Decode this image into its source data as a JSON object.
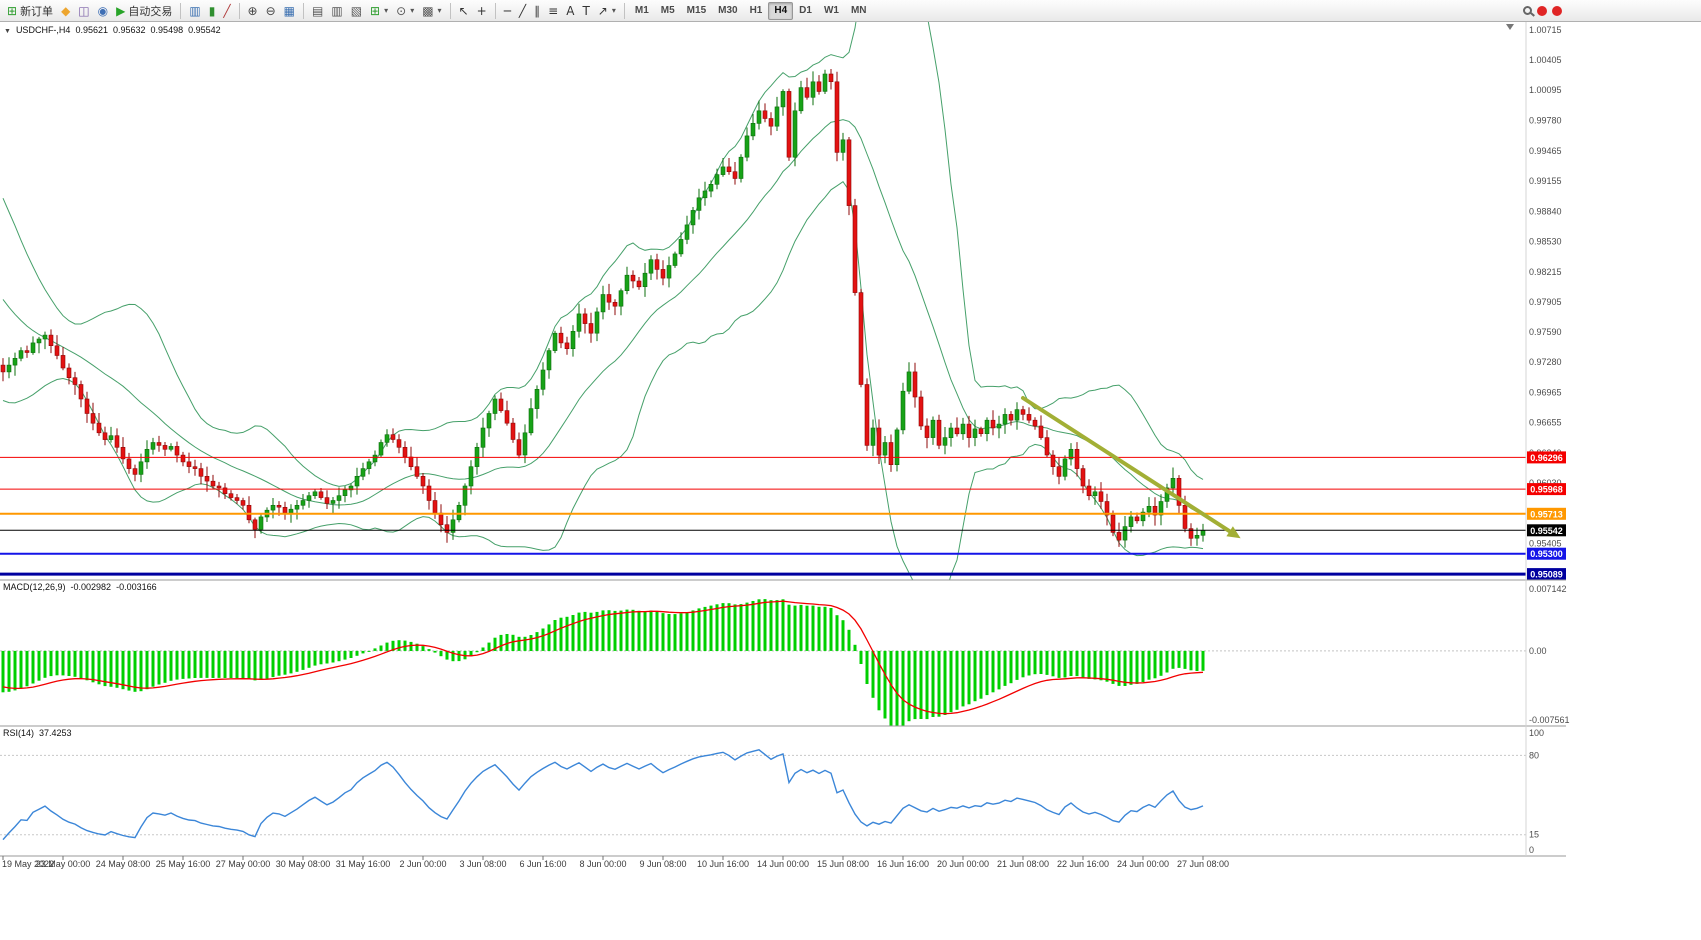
{
  "toolbar": {
    "dropdown_glyph": "▾",
    "groups": [
      {
        "items": [
          {
            "name": "new-order-button",
            "glyph": "⊞",
            "color": "#2f9e2f",
            "label": "新订单"
          },
          {
            "name": "mql5-icon",
            "glyph": "◆",
            "color": "#eda52e"
          },
          {
            "name": "market-icon",
            "glyph": "◫",
            "color": "#7b5ea7"
          },
          {
            "name": "signals-icon",
            "glyph": "◉",
            "color": "#3f6fb5"
          },
          {
            "name": "autotrading-button",
            "glyph": "▶",
            "color": "#27a327",
            "label": "自动交易"
          }
        ]
      },
      {
        "items": [
          {
            "name": "bar-chart-icon",
            "glyph": "▥",
            "color": "#3a6fb0"
          },
          {
            "name": "candlestick-chart-icon",
            "glyph": "▮",
            "color": "#2f8f2f"
          },
          {
            "name": "line-chart-icon",
            "glyph": "╱",
            "color": "#b03a3a"
          }
        ]
      },
      {
        "items": [
          {
            "name": "zoom-in-icon",
            "glyph": "⊕",
            "color": "#444444"
          },
          {
            "name": "zoom-out-icon",
            "glyph": "⊖",
            "color": "#444444"
          },
          {
            "name": "tile-windows-icon",
            "glyph": "▦",
            "color": "#3a6fb0"
          }
        ]
      },
      {
        "items": [
          {
            "name": "cascade-windows-icon",
            "glyph": "▤",
            "color": "#555555"
          },
          {
            "name": "tile-horizontal-icon",
            "glyph": "▥",
            "color": "#555555"
          },
          {
            "name": "tile-vertical-icon",
            "glyph": "▧",
            "color": "#555555"
          },
          {
            "name": "add-indicator-button",
            "glyph": "⊞",
            "color": "#2f9e2f",
            "dropdown": true
          },
          {
            "name": "period-button",
            "glyph": "⊙",
            "color": "#555555",
            "dropdown": true
          },
          {
            "name": "template-button",
            "glyph": "▩",
            "color": "#555555",
            "dropdown": true
          }
        ]
      },
      {
        "items": [
          {
            "name": "cursor-icon",
            "glyph": "↖",
            "color": "#333333"
          },
          {
            "name": "crosshair-icon",
            "glyph": "+",
            "color": "#333333"
          }
        ]
      },
      {
        "items": [
          {
            "name": "horizontal-line-icon",
            "glyph": "─",
            "color": "#333333"
          },
          {
            "name": "trendline-icon",
            "glyph": "╱",
            "color": "#333333"
          },
          {
            "name": "channel-icon",
            "glyph": "∥",
            "color": "#333333"
          },
          {
            "name": "fibonacci-icon",
            "glyph": "≡",
            "color": "#333333"
          },
          {
            "name": "text-tool-icon",
            "glyph": "A",
            "color": "#333333"
          },
          {
            "name": "label-tool-icon",
            "glyph": "T",
            "color": "#333333"
          },
          {
            "name": "shapes-button",
            "glyph": "↗",
            "color": "#333333",
            "dropdown": true
          }
        ]
      }
    ],
    "timeframes": [
      "M1",
      "M5",
      "M15",
      "M30",
      "H1",
      "H4",
      "D1",
      "W1",
      "MN"
    ],
    "active_timeframe": "H4",
    "badge_color": "#e02525",
    "badge_count": 2
  },
  "main_chart": {
    "collapse_glyph": "▼",
    "symbol_period": "USDCHF-,H4",
    "ohlc": {
      "open": "0.95621",
      "high": "0.95632",
      "low": "0.95498",
      "close": "0.95542"
    },
    "y_axis": {
      "top_price": 1.00798,
      "bottom_price": 0.95028,
      "ticks": [
        "1.00715",
        "1.00405",
        "1.00095",
        "0.99780",
        "0.99465",
        "0.99155",
        "0.98840",
        "0.98530",
        "0.98215",
        "0.97905",
        "0.97590",
        "0.97280",
        "0.96965",
        "0.96655",
        "0.96340",
        "0.96030",
        "0.95715",
        "0.95405",
        "0.95089"
      ]
    },
    "price_lines": [
      {
        "price": 0.96296,
        "label": "0.96296",
        "color": "#f40000",
        "thickness": 1
      },
      {
        "price": 0.95968,
        "label": "0.95968",
        "color": "#f40000",
        "thickness": 1
      },
      {
        "price": 0.95713,
        "label": "0.95713",
        "color": "#ff9800",
        "thickness": 2
      },
      {
        "price": 0.95542,
        "label": "0.95542",
        "color": "#000000",
        "thickness": 1
      },
      {
        "price": 0.953,
        "label": "0.95300",
        "color": "#1414e8",
        "thickness": 2
      },
      {
        "price": 0.95089,
        "label": "0.95089",
        "color": "#0000a0",
        "thickness": 3
      }
    ],
    "trend_arrow": {
      "from_index": 170,
      "from_price": 0.9691,
      "to_index": 205,
      "to_price": 0.9551,
      "color": "#a2af35"
    },
    "bollinger": {
      "period": 20,
      "deviation": 2,
      "color": "#46a06a"
    },
    "candle_colors": {
      "up": "#17a217",
      "up_border": "#0c6f0c",
      "down": "#e31212",
      "down_border": "#8f0808"
    },
    "candles": {
      "pre_closes": [
        0.9902,
        0.989,
        0.9876,
        0.9868,
        0.9855,
        0.9841,
        0.9832,
        0.982,
        0.9808,
        0.98,
        0.9791,
        0.978,
        0.9772,
        0.9764,
        0.9757,
        0.975,
        0.9744,
        0.9738,
        0.9731,
        0.9725
      ],
      "closes": [
        0.9718,
        0.9725,
        0.9732,
        0.974,
        0.9738,
        0.9748,
        0.9752,
        0.9756,
        0.9745,
        0.9735,
        0.9722,
        0.9712,
        0.9705,
        0.969,
        0.9675,
        0.9665,
        0.9655,
        0.9648,
        0.9652,
        0.964,
        0.9628,
        0.9618,
        0.9612,
        0.9625,
        0.9638,
        0.9645,
        0.9642,
        0.9638,
        0.9641,
        0.9632,
        0.9625,
        0.962,
        0.9618,
        0.961,
        0.9605,
        0.96,
        0.9598,
        0.9592,
        0.9588,
        0.9585,
        0.958,
        0.9565,
        0.9555,
        0.9568,
        0.9575,
        0.958,
        0.9578,
        0.9572,
        0.9576,
        0.958,
        0.9585,
        0.959,
        0.9594,
        0.9588,
        0.9582,
        0.9585,
        0.959,
        0.9596,
        0.96,
        0.961,
        0.9618,
        0.9625,
        0.9632,
        0.9645,
        0.9653,
        0.9648,
        0.964,
        0.963,
        0.962,
        0.961,
        0.96,
        0.9585,
        0.9572,
        0.956,
        0.9552,
        0.9565,
        0.958,
        0.96,
        0.962,
        0.964,
        0.966,
        0.9675,
        0.969,
        0.9678,
        0.9665,
        0.9648,
        0.9632,
        0.9655,
        0.968,
        0.97,
        0.972,
        0.974,
        0.9758,
        0.9748,
        0.9742,
        0.976,
        0.9778,
        0.9768,
        0.9758,
        0.978,
        0.9798,
        0.979,
        0.9786,
        0.9802,
        0.9818,
        0.9812,
        0.9806,
        0.982,
        0.9834,
        0.9824,
        0.9815,
        0.9828,
        0.984,
        0.9855,
        0.987,
        0.9885,
        0.9898,
        0.9905,
        0.9912,
        0.9922,
        0.993,
        0.9925,
        0.9918,
        0.994,
        0.9962,
        0.9975,
        0.9988,
        0.998,
        0.9972,
        0.9992,
        1.0008,
        0.994,
        0.9988,
        1.0012,
        1.0002,
        1.0018,
        1.0008,
        1.0026,
        1.0018,
        0.9945,
        0.9958,
        0.989,
        0.98,
        0.9705,
        0.9642,
        0.966,
        0.9632,
        0.9645,
        0.9622,
        0.9658,
        0.9698,
        0.9718,
        0.9692,
        0.9662,
        0.965,
        0.9668,
        0.9642,
        0.965,
        0.966,
        0.9654,
        0.9664,
        0.965,
        0.9659,
        0.9654,
        0.9668,
        0.966,
        0.9664,
        0.9674,
        0.9668,
        0.9679,
        0.9674,
        0.9668,
        0.9662,
        0.965,
        0.9632,
        0.962,
        0.961,
        0.9628,
        0.9638,
        0.9618,
        0.96,
        0.959,
        0.9594,
        0.9584,
        0.957,
        0.9552,
        0.9544,
        0.9558,
        0.9568,
        0.9564,
        0.9573,
        0.9579,
        0.957,
        0.9584,
        0.9598,
        0.9608,
        0.958,
        0.9556,
        0.9546,
        0.9549,
        0.95542
      ]
    }
  },
  "macd_panel": {
    "title": "MACD(12,26,9)",
    "value_main": "-0.002982",
    "value_signal": "-0.003166",
    "scale": {
      "max": "0.007142",
      "zero": "0.00",
      "min": "-0.007561"
    },
    "histogram_color": "#00cf00",
    "signal_color": "#f20000"
  },
  "rsi_panel": {
    "title": "RSI(14)",
    "value": "37.4253",
    "scale": [
      "100",
      "80",
      "15",
      "0"
    ],
    "levels": [
      80,
      15
    ],
    "line_color": "#3b86d8"
  },
  "x_axis": {
    "labels": [
      "19 May 2022",
      "23 May 00:00",
      "24 May 08:00",
      "25 May 16:00",
      "27 May 00:00",
      "30 May 08:00",
      "31 May 16:00",
      "2 Jun 00:00",
      "3 Jun 08:00",
      "6 Jun 16:00",
      "8 Jun 00:00",
      "9 Jun 08:00",
      "10 Jun 16:00",
      "14 Jun 00:00",
      "15 Jun 08:00",
      "16 Jun 16:00",
      "20 Jun 00:00",
      "21 Jun 08:00",
      "22 Jun 16:00",
      "24 Jun 00:00",
      "27 Jun 08:00"
    ]
  }
}
